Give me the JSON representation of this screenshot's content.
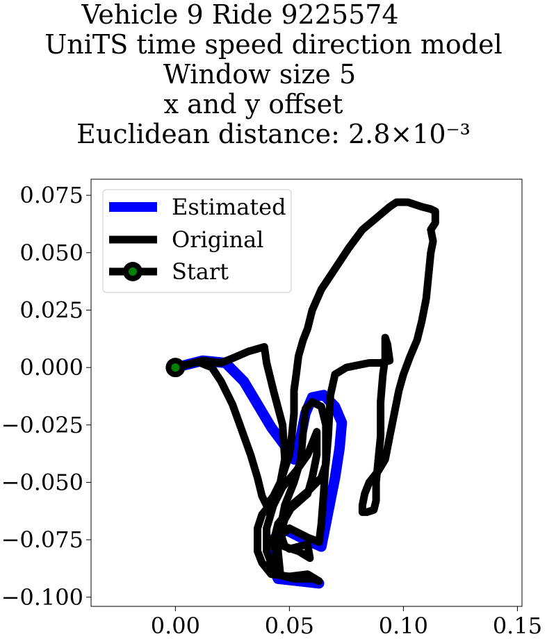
{
  "title_lines": [
    "Vehicle 9 Ride 9225574",
    "UniTS time speed direction model",
    "Window size 5",
    "x and y offset",
    "Euclidean distance: 2.8×10⁻³"
  ],
  "chart_data": {
    "type": "line",
    "title": "Vehicle 9 Ride 9225574 UniTS time speed direction model Window size 5 x and y offset Euclidean distance: 2.8×10⁻³",
    "xlim": [
      -0.037,
      0.152
    ],
    "ylim": [
      -0.104,
      0.082
    ],
    "xticks": [
      0.0,
      0.05,
      0.1,
      0.15
    ],
    "xtick_labels": [
      "0.00",
      "0.05",
      "0.10",
      "0.15"
    ],
    "yticks": [
      0.075,
      0.05,
      0.025,
      0.0,
      -0.025,
      -0.05,
      -0.075,
      -0.1
    ],
    "ytick_labels": [
      "0.075",
      "0.050",
      "0.025",
      "0.000",
      "−0.025",
      "−0.050",
      "−0.075",
      "−0.100"
    ],
    "grid": false,
    "legend": {
      "placement": "top-left",
      "entries": [
        "Estimated",
        "Original",
        "Start"
      ]
    },
    "colors": {
      "estimated": "#0000ff",
      "original": "#000000",
      "start": "#008000"
    },
    "series": [
      {
        "name": "Estimated",
        "points": [
          [
            0.0,
            0.0
          ],
          [
            0.012,
            0.003
          ],
          [
            0.022,
            0.002
          ],
          [
            0.03,
            -0.006
          ],
          [
            0.036,
            -0.016
          ],
          [
            0.042,
            -0.026
          ],
          [
            0.048,
            -0.034
          ],
          [
            0.052,
            -0.04
          ],
          [
            0.055,
            -0.03
          ],
          [
            0.057,
            -0.02
          ],
          [
            0.06,
            -0.013
          ],
          [
            0.065,
            -0.012
          ],
          [
            0.07,
            -0.017
          ],
          [
            0.073,
            -0.024
          ],
          [
            0.072,
            -0.035
          ],
          [
            0.07,
            -0.048
          ],
          [
            0.068,
            -0.058
          ],
          [
            0.066,
            -0.068
          ],
          [
            0.064,
            -0.078
          ],
          [
            0.055,
            -0.074
          ],
          [
            0.047,
            -0.07
          ],
          [
            0.043,
            -0.075
          ],
          [
            0.042,
            -0.085
          ],
          [
            0.045,
            -0.092
          ],
          [
            0.054,
            -0.093
          ],
          [
            0.063,
            -0.094
          ]
        ]
      },
      {
        "name": "Original",
        "points": [
          [
            0.0,
            0.0
          ],
          [
            0.012,
            0.003
          ],
          [
            0.02,
            0.002
          ],
          [
            0.025,
            0.004
          ],
          [
            0.032,
            0.007
          ],
          [
            0.039,
            0.009
          ],
          [
            0.04,
            0.002
          ],
          [
            0.043,
            -0.01
          ],
          [
            0.047,
            -0.025
          ],
          [
            0.048,
            -0.04
          ],
          [
            0.046,
            -0.05
          ],
          [
            0.043,
            -0.058
          ],
          [
            0.038,
            -0.064
          ],
          [
            0.036,
            -0.07
          ],
          [
            0.036,
            -0.08
          ],
          [
            0.038,
            -0.085
          ],
          [
            0.042,
            -0.09
          ],
          [
            0.05,
            -0.091
          ],
          [
            0.058,
            -0.09
          ],
          [
            0.063,
            -0.093
          ],
          [
            0.06,
            -0.092
          ],
          [
            0.052,
            -0.092
          ],
          [
            0.044,
            -0.09
          ],
          [
            0.04,
            -0.08
          ],
          [
            0.04,
            -0.07
          ],
          [
            0.043,
            -0.06
          ],
          [
            0.047,
            -0.052
          ],
          [
            0.053,
            -0.045
          ],
          [
            0.058,
            -0.038
          ],
          [
            0.062,
            -0.028
          ],
          [
            0.062,
            -0.038
          ],
          [
            0.06,
            -0.048
          ],
          [
            0.058,
            -0.055
          ],
          [
            0.05,
            -0.062
          ],
          [
            0.045,
            -0.068
          ],
          [
            0.043,
            -0.076
          ],
          [
            0.045,
            -0.085
          ],
          [
            0.046,
            -0.09
          ],
          [
            0.045,
            -0.08
          ],
          [
            0.046,
            -0.07
          ],
          [
            0.048,
            -0.06
          ],
          [
            0.052,
            -0.05
          ],
          [
            0.055,
            -0.04
          ],
          [
            0.056,
            -0.028
          ],
          [
            0.057,
            -0.018
          ],
          [
            0.06,
            -0.015
          ],
          [
            0.064,
            -0.017
          ],
          [
            0.066,
            -0.025
          ],
          [
            0.066,
            -0.04
          ],
          [
            0.065,
            -0.055
          ],
          [
            0.064,
            -0.068
          ],
          [
            0.063,
            -0.076
          ],
          [
            0.058,
            -0.074
          ],
          [
            0.05,
            -0.07
          ],
          [
            0.044,
            -0.075
          ],
          [
            0.05,
            -0.079
          ],
          [
            0.058,
            -0.077
          ],
          [
            0.059,
            -0.083
          ],
          [
            0.054,
            -0.08
          ],
          [
            0.048,
            -0.078
          ],
          [
            0.046,
            -0.072
          ],
          [
            0.048,
            -0.066
          ],
          [
            0.052,
            -0.059
          ],
          [
            0.058,
            -0.054
          ],
          [
            0.062,
            -0.05
          ],
          [
            0.064,
            -0.048
          ],
          [
            0.066,
            -0.042
          ],
          [
            0.067,
            -0.03
          ],
          [
            0.068,
            -0.012
          ],
          [
            0.07,
            -0.003
          ],
          [
            0.075,
            0.0
          ],
          [
            0.085,
            0.002
          ],
          [
            0.09,
            0.002
          ],
          [
            0.094,
            0.003
          ],
          [
            0.093,
            0.01
          ],
          [
            0.092,
            0.013
          ],
          [
            0.092,
            0.004
          ],
          [
            0.091,
            -0.003
          ],
          [
            0.09,
            -0.015
          ],
          [
            0.09,
            -0.03
          ],
          [
            0.089,
            -0.04
          ],
          [
            0.088,
            -0.05
          ],
          [
            0.088,
            -0.058
          ],
          [
            0.087,
            -0.062
          ],
          [
            0.084,
            -0.063
          ],
          [
            0.082,
            -0.063
          ],
          [
            0.082,
            -0.06
          ],
          [
            0.083,
            -0.055
          ],
          [
            0.085,
            -0.05
          ],
          [
            0.089,
            -0.045
          ],
          [
            0.092,
            -0.04
          ],
          [
            0.094,
            -0.03
          ],
          [
            0.096,
            -0.02
          ],
          [
            0.098,
            -0.01
          ],
          [
            0.1,
            -0.003
          ],
          [
            0.103,
            0.005
          ],
          [
            0.106,
            0.012
          ],
          [
            0.108,
            0.02
          ],
          [
            0.11,
            0.03
          ],
          [
            0.111,
            0.04
          ],
          [
            0.112,
            0.05
          ],
          [
            0.113,
            0.055
          ],
          [
            0.112,
            0.06
          ],
          [
            0.114,
            0.063
          ],
          [
            0.114,
            0.068
          ],
          [
            0.112,
            0.069
          ],
          [
            0.108,
            0.07
          ],
          [
            0.102,
            0.072
          ],
          [
            0.097,
            0.072
          ],
          [
            0.094,
            0.07
          ],
          [
            0.088,
            0.065
          ],
          [
            0.082,
            0.06
          ],
          [
            0.076,
            0.052
          ],
          [
            0.07,
            0.043
          ],
          [
            0.064,
            0.034
          ],
          [
            0.06,
            0.025
          ],
          [
            0.058,
            0.017
          ],
          [
            0.056,
            0.012
          ],
          [
            0.054,
            0.005
          ],
          [
            0.053,
            -0.003
          ],
          [
            0.052,
            -0.01
          ],
          [
            0.052,
            -0.02
          ],
          [
            0.051,
            -0.03
          ],
          [
            0.05,
            -0.038
          ],
          [
            0.048,
            -0.044
          ],
          [
            0.046,
            -0.05
          ],
          [
            0.043,
            -0.056
          ],
          [
            0.04,
            -0.06
          ],
          [
            0.038,
            -0.056
          ],
          [
            0.036,
            -0.048
          ],
          [
            0.033,
            -0.038
          ],
          [
            0.029,
            -0.027
          ],
          [
            0.025,
            -0.016
          ],
          [
            0.02,
            -0.006
          ],
          [
            0.016,
            0.0
          ],
          [
            0.011,
            0.002
          ]
        ]
      },
      {
        "name": "Start",
        "points": [
          [
            0.0,
            0.0
          ]
        ]
      }
    ]
  }
}
